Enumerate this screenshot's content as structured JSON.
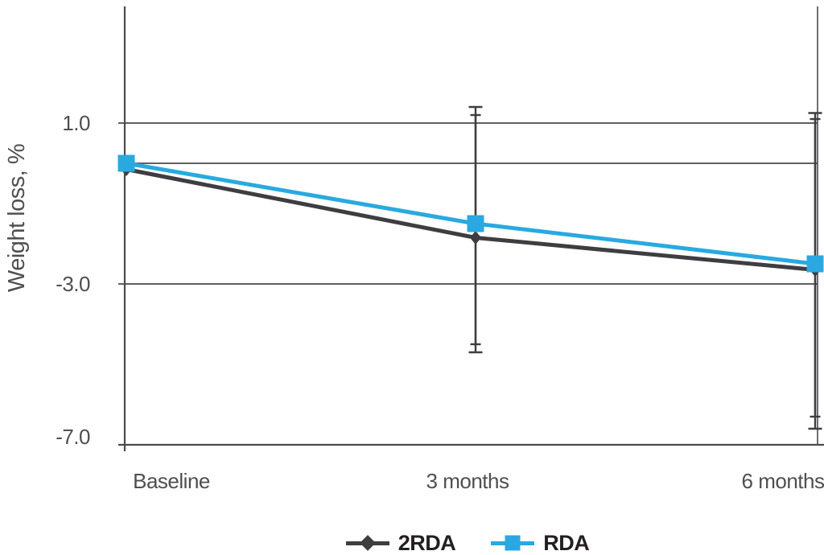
{
  "chart_data": {
    "type": "line",
    "title": "",
    "xlabel": "",
    "ylabel": "Weight loss, %",
    "categories": [
      "Baseline",
      "3 months",
      "6 months"
    ],
    "series": [
      {
        "name": "2RDA",
        "color": "#3E3E40",
        "marker": "diamond",
        "values": [
          -0.15,
          -1.85,
          -2.65
        ]
      },
      {
        "name": "RDA",
        "color": "#29A9E0",
        "marker": "square",
        "values": [
          0.0,
          -1.5,
          -2.5
        ]
      }
    ],
    "error_bars": [
      {
        "series": "2RDA",
        "category": "3 months",
        "upper": 1.4,
        "lower": -4.7
      },
      {
        "series": "RDA",
        "category": "3 months",
        "upper": 1.2,
        "lower": -4.5
      },
      {
        "series": "2RDA",
        "category": "6 months",
        "upper": 1.25,
        "lower": -6.6
      },
      {
        "series": "RDA",
        "category": "6 months",
        "upper": 1.1,
        "lower": -6.3
      }
    ],
    "yticks": [
      {
        "value": 1.0,
        "label": "1.0"
      },
      {
        "value": -3.0,
        "label": "-3.0"
      },
      {
        "value": -7.0,
        "label": "-7.0"
      }
    ],
    "gridline_values": [
      1.0,
      0.0,
      -3.0
    ],
    "ylim": [
      -7.0,
      4.0
    ],
    "grid": "horizontal",
    "legend_position": "bottom",
    "colors": {
      "background": "#FFFFFF",
      "grid": "#4A4A4C",
      "axis": "#4A4A4C",
      "tick_text": "#4F4F51",
      "legend_text": "#242022",
      "error_bar": "#3E3E40"
    }
  }
}
